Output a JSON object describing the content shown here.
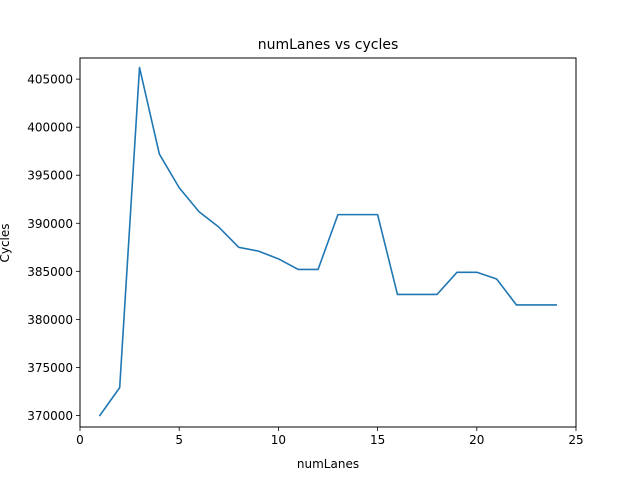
{
  "chart_data": {
    "type": "line",
    "title": "numLanes vs cycles",
    "xlabel": "numLanes",
    "ylabel": "Cycles",
    "xlim": [
      0,
      25
    ],
    "ylim": [
      368800,
      407200
    ],
    "xticks": [
      0,
      5,
      10,
      15,
      20,
      25
    ],
    "yticks": [
      370000,
      375000,
      380000,
      385000,
      390000,
      395000,
      400000,
      405000
    ],
    "grid": false,
    "series": [
      {
        "color": "#1f77b4",
        "x": [
          1,
          2,
          3,
          4,
          5,
          6,
          7,
          8,
          9,
          10,
          11,
          12,
          13,
          14,
          15,
          16,
          17,
          18,
          19,
          20,
          21,
          22,
          23,
          24
        ],
        "y": [
          370000,
          372900,
          406200,
          397200,
          393700,
          391200,
          389600,
          387500,
          387100,
          386300,
          385200,
          385200,
          390900,
          390900,
          390900,
          382600,
          382600,
          382600,
          384900,
          384900,
          384200,
          381500,
          381500,
          381500
        ]
      }
    ]
  }
}
